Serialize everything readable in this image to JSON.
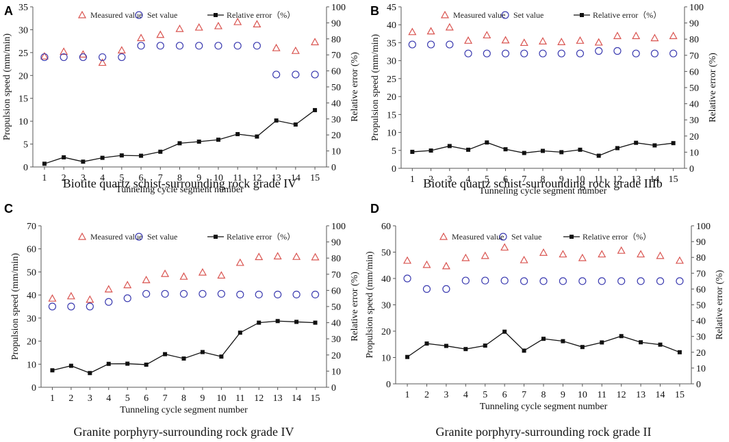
{
  "chart_data": [
    {
      "panel": "A",
      "type": "scatter",
      "caption": "Biotite quartz schist-surrounding rock grade IV",
      "xlabel": "Tunneling cycle segment number",
      "ylabel": "Propulsion speed (mm/min)",
      "y2label": "Relative error (%)",
      "x": [
        1,
        2,
        3,
        4,
        5,
        6,
        7,
        8,
        9,
        10,
        11,
        12,
        13,
        14,
        15
      ],
      "ylim": [
        0,
        35
      ],
      "yticks": [
        0,
        5,
        10,
        15,
        20,
        25,
        30,
        35
      ],
      "y2lim": [
        0,
        100
      ],
      "y2ticks": [
        0,
        10,
        20,
        30,
        40,
        50,
        60,
        70,
        80,
        90,
        100
      ],
      "series": [
        {
          "name": "Measured value",
          "marker": "triangle",
          "color": "#d9534f",
          "axis": "left",
          "values": [
            24.2,
            25.2,
            24.6,
            22.8,
            25.5,
            28.2,
            28.9,
            30.2,
            30.5,
            30.8,
            31.7,
            31.2,
            26.0,
            25.4,
            27.3
          ]
        },
        {
          "name": "Set value",
          "marker": "circle",
          "color": "#3b3bb0",
          "axis": "left",
          "values": [
            24.0,
            24.0,
            24.0,
            24.0,
            24.0,
            26.5,
            26.5,
            26.5,
            26.5,
            26.5,
            26.5,
            26.5,
            20.2,
            20.2,
            20.2
          ]
        },
        {
          "name": "Relative error（%）",
          "marker": "square-line",
          "color": "#111111",
          "axis": "right",
          "values": [
            2,
            6,
            3.3,
            5.7,
            7.2,
            7,
            9.5,
            14.8,
            15.8,
            17,
            20.5,
            19,
            29,
            26.5,
            35.5
          ]
        }
      ]
    },
    {
      "panel": "B",
      "type": "scatter",
      "caption": "Biotite quartz schist-surrounding rock grade IIIb",
      "xlabel": "Tunneling cycle segment number",
      "ylabel": "Propulsion speed (mm/min)",
      "y2label": "Relative error (%)",
      "x": [
        1,
        2,
        3,
        4,
        5,
        6,
        7,
        8,
        9,
        10,
        11,
        12,
        13,
        14,
        15
      ],
      "ylim": [
        0,
        45
      ],
      "yticks": [
        0,
        5,
        10,
        15,
        20,
        25,
        30,
        35,
        40,
        45
      ],
      "y2lim": [
        0,
        100
      ],
      "y2ticks": [
        0,
        10,
        20,
        30,
        40,
        50,
        60,
        70,
        80,
        90,
        100
      ],
      "series": [
        {
          "name": "Measured value",
          "marker": "triangle",
          "color": "#d9534f",
          "axis": "left",
          "values": [
            38,
            38.2,
            39.3,
            35.6,
            37.1,
            35.7,
            35.0,
            35.4,
            35.2,
            35.6,
            35.1,
            36.9,
            36.9,
            36.3,
            36.9
          ]
        },
        {
          "name": "Set value",
          "marker": "circle",
          "color": "#3b3bb0",
          "axis": "left",
          "values": [
            34.5,
            34.5,
            34.5,
            32.0,
            32.0,
            32.0,
            32.0,
            32.0,
            32.0,
            32.0,
            32.7,
            32.7,
            32.0,
            32.0,
            32.0
          ]
        },
        {
          "name": "Relative error（%）",
          "marker": "square-line",
          "color": "#111111",
          "axis": "right",
          "values": [
            10.2,
            11,
            13.8,
            11.5,
            16,
            11.8,
            9.5,
            10.8,
            10,
            11.5,
            7.8,
            12.5,
            15.8,
            14.2,
            15.6
          ]
        }
      ]
    },
    {
      "panel": "C",
      "type": "scatter",
      "caption": "Granite porphyry-surrounding rock grade IV",
      "xlabel": "Tunneling cycle segment number",
      "ylabel": "Propulsion speed (mm/min)",
      "y2label": "Relative error (%)",
      "x": [
        1,
        2,
        3,
        4,
        5,
        6,
        7,
        8,
        9,
        10,
        11,
        12,
        13,
        14,
        15
      ],
      "ylim": [
        0,
        70
      ],
      "yticks": [
        0,
        10,
        20,
        30,
        40,
        50,
        60,
        70
      ],
      "y2lim": [
        0,
        100
      ],
      "y2ticks": [
        0,
        10,
        20,
        30,
        40,
        50,
        60,
        70,
        80,
        90,
        100
      ],
      "series": [
        {
          "name": "Measured value",
          "marker": "triangle",
          "color": "#d9534f",
          "axis": "left",
          "values": [
            38.5,
            39.5,
            38.0,
            42.5,
            44.3,
            46.5,
            49.2,
            48.0,
            49.8,
            48.5,
            54.0,
            56.5,
            56.8,
            56.6,
            56.4
          ]
        },
        {
          "name": "Set value",
          "marker": "circle",
          "color": "#3b3bb0",
          "axis": "left",
          "values": [
            35.0,
            35.0,
            35.0,
            37.0,
            38.6,
            40.5,
            40.5,
            40.5,
            40.5,
            40.5,
            40.2,
            40.2,
            40.2,
            40.2,
            40.2
          ]
        },
        {
          "name": "Relative error（%）",
          "marker": "square-line",
          "color": "#111111",
          "axis": "right",
          "values": [
            10.5,
            13.3,
            8.8,
            14.5,
            14.6,
            14,
            20.5,
            17.8,
            21.8,
            19,
            33.8,
            40,
            41,
            40.5,
            40
          ]
        }
      ]
    },
    {
      "panel": "D",
      "type": "scatter",
      "caption": "Granite porphyry-surrounding rock grade II",
      "xlabel": "Tunneling cycle segment number",
      "ylabel": "Propulsion speed (mm/min)",
      "y2label": "Relative error (%)",
      "x": [
        1,
        2,
        3,
        4,
        5,
        6,
        7,
        8,
        9,
        10,
        11,
        12,
        13,
        14,
        15
      ],
      "ylim": [
        0,
        60
      ],
      "yticks": [
        0,
        10,
        20,
        30,
        40,
        50,
        60
      ],
      "y2lim": [
        0,
        100
      ],
      "y2ticks": [
        0,
        10,
        20,
        30,
        40,
        50,
        60,
        70,
        80,
        90,
        100
      ],
      "series": [
        {
          "name": "Measured value",
          "marker": "triangle",
          "color": "#d9534f",
          "axis": "left",
          "values": [
            46.8,
            45.2,
            44.7,
            47.8,
            48.6,
            51.8,
            47.0,
            49.8,
            49.2,
            47.8,
            49.2,
            50.6,
            49.2,
            48.6,
            46.8
          ]
        },
        {
          "name": "Set value",
          "marker": "circle",
          "color": "#3b3bb0",
          "axis": "left",
          "values": [
            40.0,
            36.0,
            36.0,
            39.2,
            39.2,
            39.2,
            39.0,
            39.0,
            39.0,
            39.0,
            39.0,
            39.0,
            39.0,
            39.0,
            39.0
          ]
        },
        {
          "name": "Relative error（%）",
          "marker": "square-line",
          "color": "#111111",
          "axis": "right",
          "values": [
            17,
            25.5,
            24,
            22,
            24.2,
            33,
            21,
            28.5,
            27,
            23.3,
            26.2,
            30.2,
            26.3,
            24.8,
            20
          ]
        }
      ]
    }
  ]
}
